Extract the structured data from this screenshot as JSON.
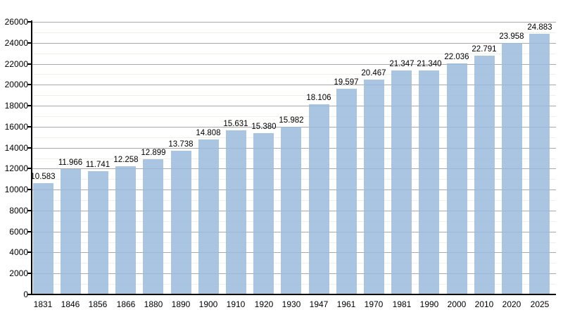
{
  "chart_data": {
    "type": "bar",
    "title": "",
    "xlabel": "",
    "ylabel": "",
    "categories": [
      "1831",
      "1846",
      "1856",
      "1866",
      "1880",
      "1890",
      "1900",
      "1910",
      "1920",
      "1930",
      "1947",
      "1961",
      "1970",
      "1981",
      "1990",
      "2000",
      "2010",
      "2020",
      "2025"
    ],
    "values": [
      10583,
      11966,
      11741,
      12258,
      12899,
      13738,
      14808,
      15631,
      15380,
      15982,
      18106,
      19597,
      20467,
      21347,
      21340,
      22036,
      22791,
      23958,
      24883
    ],
    "value_labels": [
      "10.583",
      "11.966",
      "11.741",
      "12.258",
      "12.899",
      "13.738",
      "14.808",
      "15.631",
      "15.380",
      "15.982",
      "18.106",
      "19.597",
      "20.467",
      "21.347",
      "21.340",
      "22.036",
      "22.791",
      "23.958",
      "24.883"
    ],
    "ylim": [
      0,
      26000
    ],
    "y_major_step": 2000,
    "y_minor_step": 1000,
    "y_tick_labels": [
      "0",
      "2000",
      "4000",
      "6000",
      "8000",
      "10000",
      "12000",
      "14000",
      "16000",
      "18000",
      "20000",
      "22000",
      "24000",
      "26000"
    ],
    "grid": "major-and-minor-horizontal",
    "legend": "none",
    "colors": {
      "bar_fill": "#9bbbdd",
      "grid_major": "#a9a9a9",
      "grid_minor": "#f2f0e5",
      "axis": "#000000",
      "text": "#000000",
      "background": "#ffffff"
    }
  }
}
